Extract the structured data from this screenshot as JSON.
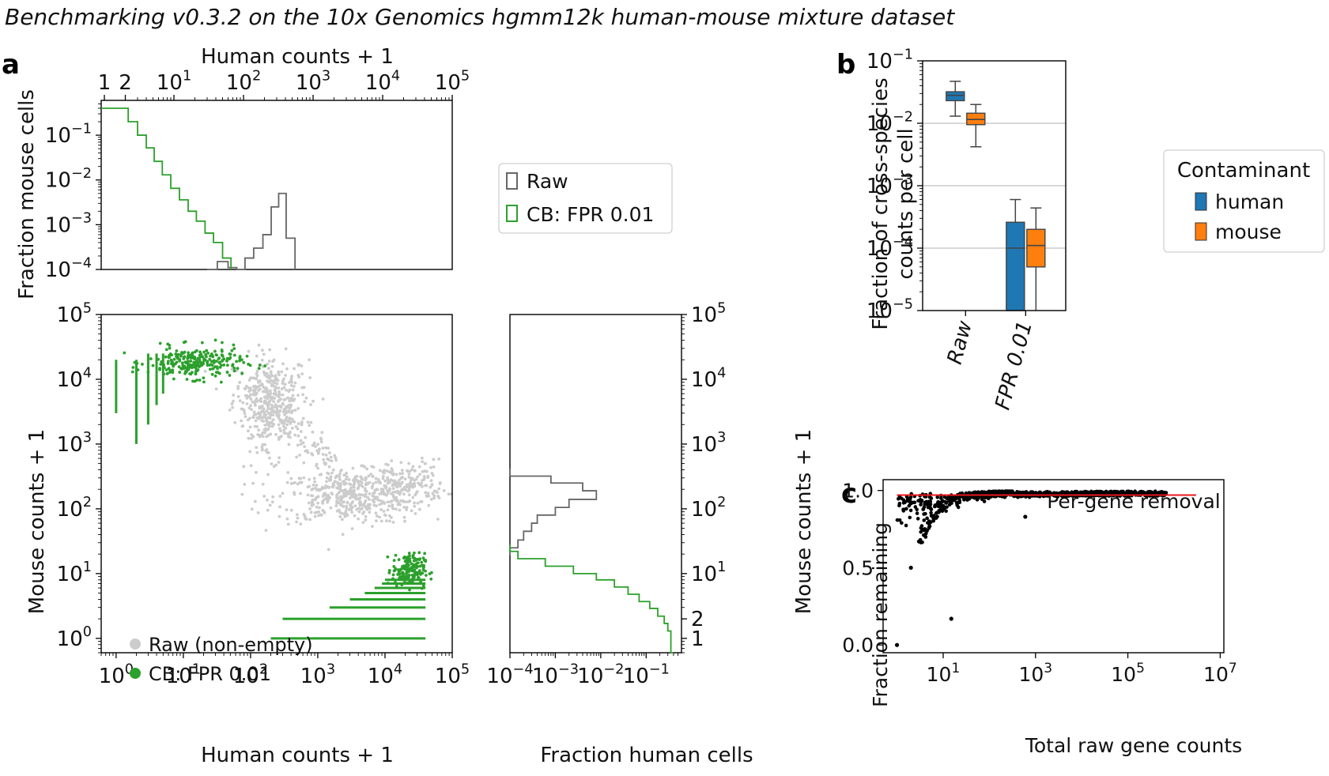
{
  "figure": {
    "title": "Benchmarking v0.3.2 on the 10x Genomics hgmm12k human-mouse mixture dataset",
    "panel_labels": [
      "a",
      "b",
      "c"
    ]
  },
  "colors": {
    "raw_gray": "#666666",
    "raw_scatter": "#cccccc",
    "cb_green": "#2ca02c",
    "human_blue": "#1f77b4",
    "mouse_orange": "#ff7f0e",
    "red_line": "#e8191c",
    "points_black": "#000000"
  },
  "chart_data": [
    {
      "id": "a-top-histogram",
      "type": "line",
      "title": "",
      "xlabel": "Human counts + 1",
      "ylabel": "Fraction mouse cells",
      "x_scale": "log",
      "y_scale": "log",
      "xlim": [
        0.9,
        100000
      ],
      "ylim": [
        0.0001,
        0.6
      ],
      "xticks": [
        {
          "v": 1,
          "label": "1"
        },
        {
          "v": 2,
          "label": "2"
        },
        {
          "v": 10,
          "label": "10^1"
        },
        {
          "v": 100,
          "label": "10^2"
        },
        {
          "v": 1000,
          "label": "10^3"
        },
        {
          "v": 10000,
          "label": "10^4"
        },
        {
          "v": 100000,
          "label": "10^5"
        }
      ],
      "yticks": [
        {
          "v": 0.1,
          "label": "10^-1"
        },
        {
          "v": 0.01,
          "label": "10^-2"
        },
        {
          "v": 0.001,
          "label": "10^-3"
        },
        {
          "v": 0.0001,
          "label": "10^-4"
        }
      ],
      "legend_position": "right",
      "series": [
        {
          "name": "Raw",
          "color": "#666666",
          "x": [
            30,
            42,
            60,
            80,
            105,
            140,
            190,
            250,
            320,
            410,
            550
          ],
          "y": [
            0.0001,
            0.00015,
            0.00011,
            0.0001,
            0.00018,
            0.0003,
            0.0006,
            0.0025,
            0.005,
            0.0005,
            0.0001
          ]
        },
        {
          "name": "CB: FPR 0.01",
          "color": "#2ca02c",
          "x": [
            0.9,
            2.2,
            3,
            4,
            5.2,
            6.8,
            9,
            12,
            16,
            21,
            28,
            37,
            50,
            66
          ],
          "y": [
            0.4,
            0.2,
            0.1,
            0.052,
            0.026,
            0.013,
            0.0065,
            0.0036,
            0.002,
            0.0012,
            0.00065,
            0.0004,
            0.00018,
            0.0001
          ]
        }
      ]
    },
    {
      "id": "a-scatter",
      "type": "scatter",
      "title": "",
      "xlabel": "Human counts + 1",
      "ylabel": "Mouse counts + 1",
      "x_scale": "log",
      "y_scale": "log",
      "xlim": [
        0.6,
        100000
      ],
      "ylim": [
        0.6,
        100000
      ],
      "xticks": [
        {
          "v": 1,
          "label": "10^0"
        },
        {
          "v": 10,
          "label": "10^1"
        },
        {
          "v": 100,
          "label": "10^2"
        },
        {
          "v": 1000,
          "label": "10^3"
        },
        {
          "v": 10000,
          "label": "10^4"
        },
        {
          "v": 100000,
          "label": "10^5"
        }
      ],
      "yticks": [
        {
          "v": 1,
          "label": "10^0"
        },
        {
          "v": 10,
          "label": "10^1"
        },
        {
          "v": 100,
          "label": "10^2"
        },
        {
          "v": 1000,
          "label": "10^3"
        },
        {
          "v": 10000,
          "label": "10^4"
        },
        {
          "v": 100000,
          "label": "10^5"
        }
      ],
      "legend_position": "lower-left",
      "series": [
        {
          "name": "Raw (non-empty)",
          "color": "#cccccc",
          "clusters": [
            {
              "cx": 200,
              "cy": 6000,
              "sx": 0.28,
              "sy": 0.3,
              "n": 260
            },
            {
              "cx": 180,
              "cy": 2000,
              "sx": 0.18,
              "sy": 0.35,
              "n": 120
            },
            {
              "cx": 3000,
              "cy": 150,
              "sx": 0.55,
              "sy": 0.2,
              "n": 420
            },
            {
              "cx": 20000,
              "cy": 250,
              "sx": 0.3,
              "sy": 0.18,
              "n": 160
            }
          ]
        },
        {
          "name": "CB: FPR 0.01",
          "color": "#2ca02c",
          "columns": [
            {
              "x": 1,
              "ylo": 3000,
              "yhi": 20000
            },
            {
              "x": 2,
              "ylo": 1000,
              "yhi": 20000
            },
            {
              "x": 3,
              "ylo": 2000,
              "yhi": 25000
            },
            {
              "x": 4,
              "ylo": 4000,
              "yhi": 25000
            },
            {
              "x": 5,
              "ylo": 6000,
              "yhi": 25000
            }
          ],
          "clusters": [
            {
              "cx": 15,
              "cy": 18000,
              "sx": 0.35,
              "sy": 0.12,
              "n": 260
            }
          ],
          "rows": [
            {
              "y": 1,
              "xlo": 200,
              "xhi": 40000
            },
            {
              "y": 2,
              "xlo": 300,
              "xhi": 40000
            },
            {
              "y": 3,
              "xlo": 1500,
              "xhi": 40000
            },
            {
              "y": 4,
              "xlo": 3000,
              "xhi": 40000
            },
            {
              "y": 5,
              "xlo": 5000,
              "xhi": 40000
            },
            {
              "y": 6,
              "xlo": 7000,
              "xhi": 40000
            },
            {
              "y": 7,
              "xlo": 9000,
              "xhi": 40000
            },
            {
              "y": 8,
              "xlo": 10000,
              "xhi": 40000
            }
          ]
        }
      ]
    },
    {
      "id": "a-right-histogram",
      "type": "line",
      "title": "",
      "xlabel": "Fraction human cells",
      "ylabel": "Mouse counts + 1",
      "x_scale": "log",
      "y_scale": "log",
      "xlim": [
        0.0001,
        0.6
      ],
      "ylim": [
        0.6,
        100000
      ],
      "xticks": [
        {
          "v": 0.0001,
          "label": "10^-4"
        },
        {
          "v": 0.001,
          "label": "10^-3"
        },
        {
          "v": 0.01,
          "label": "10^-2"
        },
        {
          "v": 0.1,
          "label": "10^-1"
        }
      ],
      "yticks": [
        {
          "v": 1,
          "label": "1"
        },
        {
          "v": 2,
          "label": "2"
        },
        {
          "v": 10,
          "label": "10^1"
        },
        {
          "v": 100,
          "label": "10^2"
        },
        {
          "v": 1000,
          "label": "10^3"
        },
        {
          "v": 10000,
          "label": "10^4"
        },
        {
          "v": 100000,
          "label": "10^5"
        }
      ],
      "series": [
        {
          "name": "Raw",
          "color": "#666666",
          "y": [
            420,
            320,
            250,
            190,
            140,
            105,
            80,
            60,
            45,
            33,
            25,
            19
          ],
          "x": [
            0.0001,
            0.0008,
            0.004,
            0.008,
            0.002,
            0.001,
            0.0004,
            0.0003,
            0.0002,
            0.00015,
            0.0001,
            0.0001
          ]
        },
        {
          "name": "CB: FPR 0.01",
          "color": "#2ca02c",
          "y": [
            28,
            22,
            17,
            13,
            10,
            8,
            6.2,
            4.8,
            3.7,
            2.9,
            2.2,
            1.7,
            1.3,
            0.6
          ],
          "x": [
            0.0001,
            0.00015,
            0.0006,
            0.0025,
            0.008,
            0.02,
            0.04,
            0.07,
            0.12,
            0.18,
            0.25,
            0.3,
            0.35,
            0.4
          ]
        }
      ]
    },
    {
      "id": "b-boxplot",
      "type": "bar",
      "subtype": "boxplot",
      "title": "",
      "xlabel": "",
      "ylabel": "Fraction of cross-species counts per cell",
      "y_scale": "log",
      "ylim": [
        1e-05,
        0.1
      ],
      "grid": "horizontal",
      "categories": [
        "Raw",
        "FPR 0.01"
      ],
      "yticks": [
        {
          "v": 0.1,
          "label": "10^-1"
        },
        {
          "v": 0.01,
          "label": "10^-2"
        },
        {
          "v": 0.001,
          "label": "10^-3"
        },
        {
          "v": 0.0001,
          "label": "10^-4"
        },
        {
          "v": 1e-05,
          "label": "10^-5"
        }
      ],
      "legend_title": "Contaminant",
      "legend_position": "right",
      "series": [
        {
          "name": "human",
          "color": "#1f77b4",
          "boxes": [
            {
              "whisker_low": 0.013,
              "q1": 0.023,
              "median": 0.028,
              "q3": 0.032,
              "whisker_high": 0.047
            },
            {
              "whisker_low": 1e-05,
              "q1": 1e-05,
              "median": 0.0001,
              "q3": 0.00026,
              "whisker_high": 0.0006
            }
          ]
        },
        {
          "name": "mouse",
          "color": "#ff7f0e",
          "boxes": [
            {
              "whisker_low": 0.0042,
              "q1": 0.0095,
              "median": 0.0115,
              "q3": 0.0145,
              "whisker_high": 0.02
            },
            {
              "whisker_low": 1e-05,
              "q1": 5e-05,
              "median": 0.00011,
              "q3": 0.0002,
              "whisker_high": 0.00044
            }
          ]
        }
      ]
    },
    {
      "id": "c-scatter",
      "type": "scatter",
      "title": "Per-gene removal",
      "xlabel": "Total raw gene counts",
      "ylabel": "Fraction remaining",
      "x_scale": "log",
      "xlim": [
        0.5,
        12000000
      ],
      "ylim": [
        -0.05,
        1.07
      ],
      "xticks": [
        {
          "v": 10,
          "label": "10^1"
        },
        {
          "v": 1000,
          "label": "10^3"
        },
        {
          "v": 100000,
          "label": "10^5"
        },
        {
          "v": 10000000,
          "label": "10^7"
        }
      ],
      "yticks": [
        {
          "v": 0,
          "label": "0.0"
        },
        {
          "v": 0.5,
          "label": "0.5"
        },
        {
          "v": 1,
          "label": "1.0"
        }
      ],
      "reference_line": {
        "y": 0.97,
        "x_from": 1,
        "x_to": 3000000,
        "color": "#e8191c"
      },
      "points": [
        {
          "x": 1,
          "y": 0.0
        },
        {
          "x": 2,
          "y": 0.5
        },
        {
          "x": 3,
          "y": 0.67
        },
        {
          "x": 4,
          "y": 0.75
        },
        {
          "x": 5,
          "y": 0.8
        },
        {
          "x": 6,
          "y": 0.83
        },
        {
          "x": 8,
          "y": 0.86
        },
        {
          "x": 10,
          "y": 0.9
        },
        {
          "x": 15,
          "y": 0.17
        },
        {
          "x": 600,
          "y": 0.83
        },
        {
          "x": 20,
          "y": 0.92
        }
      ],
      "band": {
        "x_from": 1,
        "x_to": 700000,
        "y_center": 0.98,
        "n": 700
      }
    }
  ],
  "tick_exponents": {
    "pos": [
      "0",
      "1",
      "2",
      "3",
      "4",
      "5",
      "7"
    ],
    "neg": [
      "−1",
      "−2",
      "−3",
      "−4",
      "−5"
    ]
  }
}
